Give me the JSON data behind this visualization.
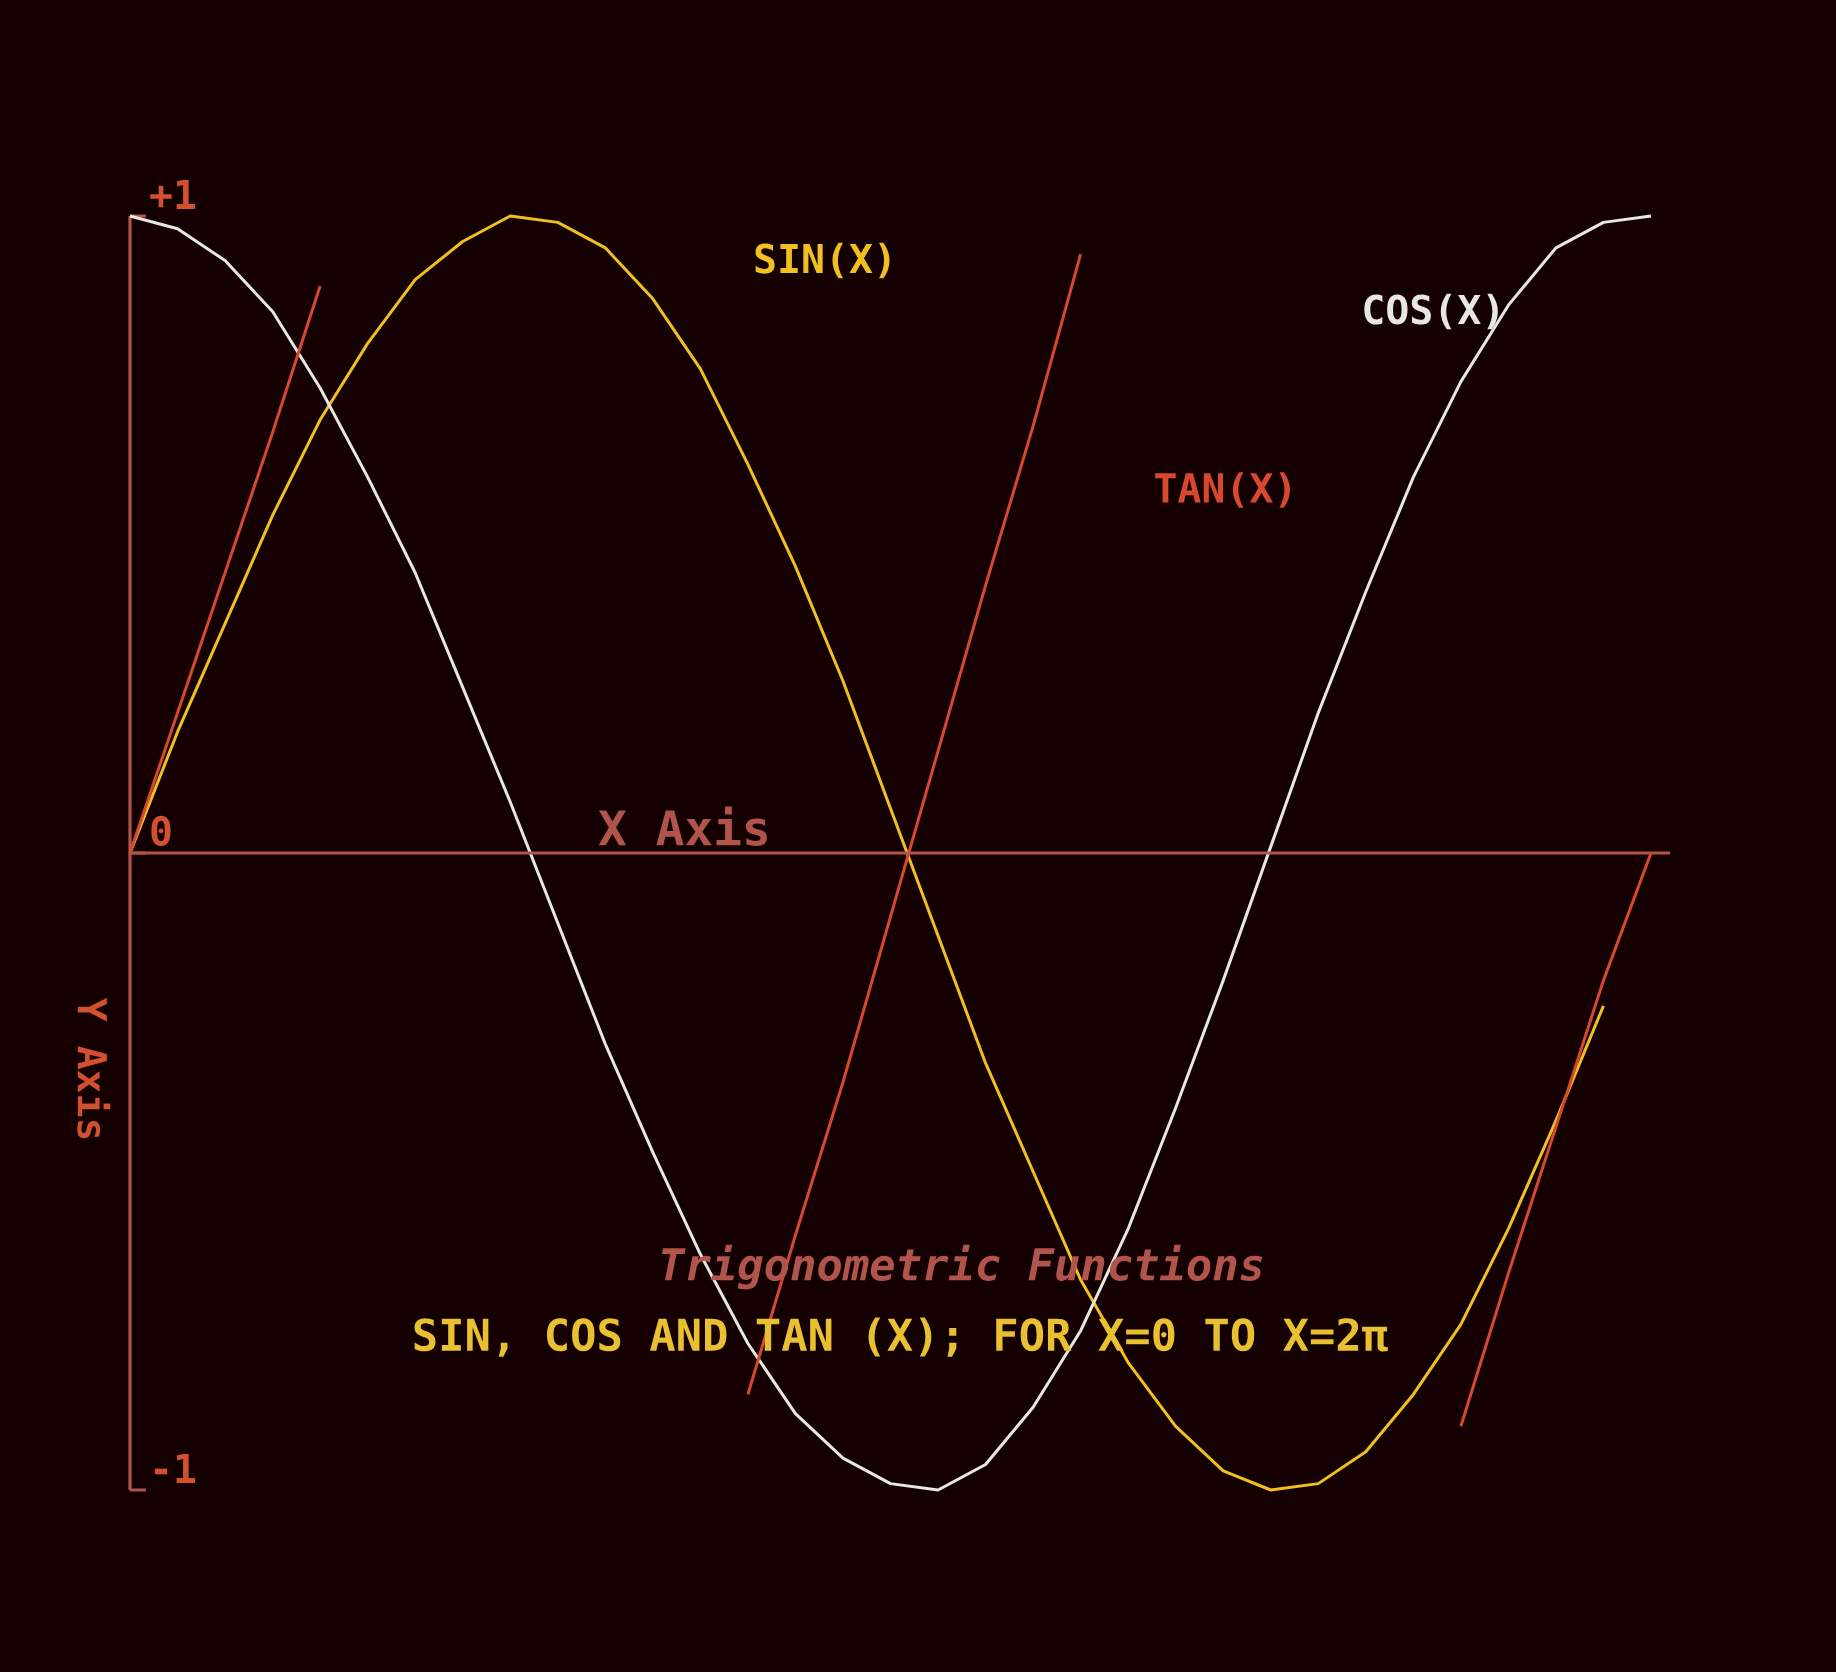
{
  "chart_data": {
    "type": "line",
    "title": "Trigonometric Functions",
    "subtitle": "SIN, COS AND TAN (X); FOR X=0 TO X=2π",
    "xlabel": "X Axis",
    "ylabel": "Y Axis",
    "categories": [
      null,
      null,
      null,
      null,
      null,
      null,
      null,
      null,
      null,
      null,
      null,
      null,
      null,
      null,
      null,
      null,
      null,
      null,
      null,
      null,
      null,
      null,
      null,
      null,
      null,
      null,
      null,
      null,
      null,
      null,
      null,
      null,
      null
    ],
    "series": [
      {
        "name": "SIN(X)",
        "color": "#f0c020",
        "values": [
          0,
          0.19,
          0.36,
          0.53,
          0.68,
          0.8,
          0.9,
          0.96,
          1.0,
          0.99,
          0.95,
          0.87,
          0.76,
          0.61,
          0.45,
          0.27,
          0.07,
          -0.13,
          -0.33,
          -0.5,
          -0.67,
          -0.8,
          -0.9,
          -0.97,
          -1.0,
          -0.99,
          -0.94,
          -0.85,
          -0.74,
          -0.59,
          -0.42,
          -0.24,
          null
        ]
      },
      {
        "name": "COS(X)",
        "color": "#e8e8e0",
        "values": [
          1.0,
          0.98,
          0.93,
          0.85,
          0.73,
          0.59,
          0.44,
          0.26,
          0.08,
          -0.11,
          -0.3,
          -0.47,
          -0.63,
          -0.77,
          -0.88,
          -0.95,
          -0.99,
          -1.0,
          -0.96,
          -0.87,
          -0.75,
          -0.59,
          -0.4,
          -0.2,
          0.01,
          0.22,
          0.41,
          0.59,
          0.74,
          0.86,
          0.95,
          0.99,
          1.0
        ]
      },
      {
        "name": "TAN(X)",
        "color": "#d8482e",
        "values": [
          0,
          0.22,
          0.44,
          0.66,
          0.89,
          null,
          null,
          null,
          null,
          null,
          null,
          null,
          null,
          -0.85,
          -0.6,
          -0.36,
          -0.1,
          0.16,
          0.42,
          0.67,
          0.94,
          null,
          null,
          null,
          null,
          null,
          null,
          null,
          -0.9,
          -0.66,
          -0.43,
          -0.2,
          0
        ]
      }
    ],
    "ylim": [
      -1,
      1
    ],
    "yticks": [
      {
        "value": 1,
        "label": "+1"
      },
      0,
      -1
    ],
    "tick_labels": "y",
    "ref_lines": [
      {
        "axis": "y",
        "value": 0,
        "color": "#b0544c"
      }
    ]
  }
}
